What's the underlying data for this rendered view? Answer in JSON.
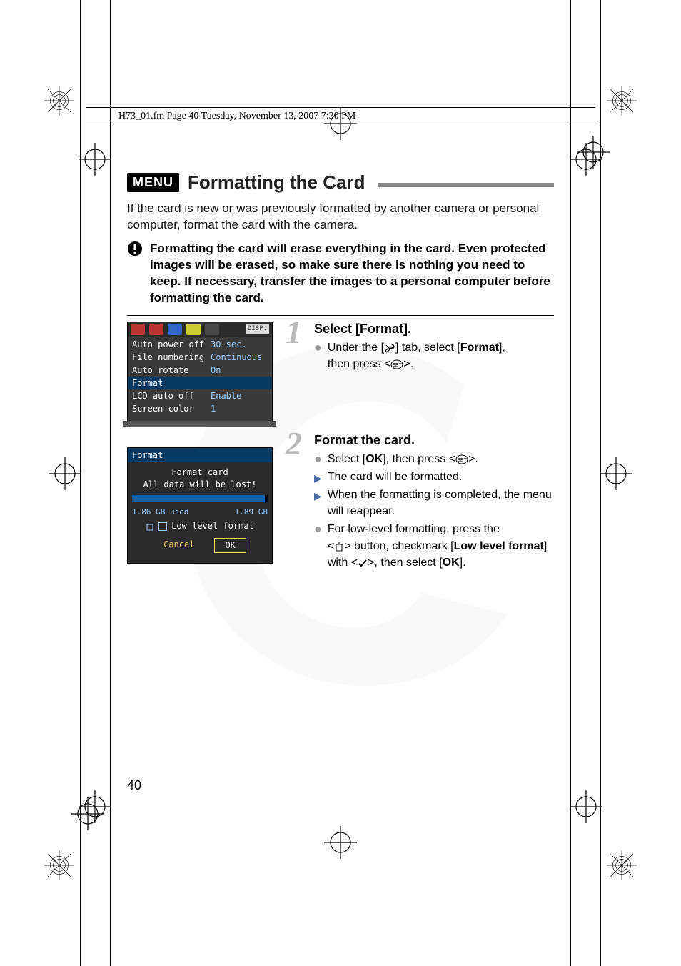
{
  "header": {
    "line": "H73_01.fm  Page 40  Tuesday, November 13, 2007  7:30 PM"
  },
  "title": {
    "badge": "MENU",
    "text": "Formatting the Card"
  },
  "intro": "If the card is new or was previously formatted by another camera or personal computer, format the card with the camera.",
  "warning": "Formatting the card will erase everything in the card. Even protected images will be erased, so make sure there is nothing you need to keep. If necessary, transfer the images to a personal computer before formatting the card.",
  "step1": {
    "num": "1",
    "head": "Select [Format].",
    "line1a": "Under the [",
    "line1b": "] tab, select [",
    "line1c": "Format",
    "line1d": "],",
    "line2a": "then press <",
    "line2b": ">."
  },
  "step2": {
    "num": "2",
    "head": "Format the card.",
    "l1a": "Select [",
    "l1b": "OK",
    "l1c": "], then press <",
    "l1d": ">.",
    "l2": "The card will be formatted.",
    "l3": "When the formatting is completed, the menu will reappear.",
    "l4a": "For low-level formatting, press the",
    "l4b": "<",
    "l4c": "> button, checkmark [",
    "l4d": "Low level format",
    "l4e": "] with <",
    "l4f": ">, then select [",
    "l4g": "OK",
    "l4h": "]."
  },
  "cam1": {
    "disp": "DISP.",
    "rows": [
      {
        "k": "Auto power off",
        "v": "30 sec."
      },
      {
        "k": "File numbering",
        "v": "Continuous"
      },
      {
        "k": "Auto rotate",
        "v": "On"
      },
      {
        "k": "Format",
        "v": ""
      },
      {
        "k": "LCD auto off",
        "v": "Enable"
      },
      {
        "k": "Screen color",
        "v": "1"
      }
    ],
    "sel_index": 3
  },
  "cam2": {
    "title": "Format",
    "h1": "Format card",
    "h2": "All data will be lost!",
    "used": "1.86 GB used",
    "total": "1.89 GB",
    "fill_pct": 98,
    "trash_icon": "trash-icon",
    "llf": "Low level format",
    "cancel": "Cancel",
    "ok": "OK"
  },
  "colors": {
    "step_num": "#b9b9b9",
    "arrow_blue": "#4a6aa8",
    "cam_bg": "#3a3a3a",
    "cam_sel": "#063a63",
    "cam_val": "#99ccff",
    "title_rule": "#888888"
  },
  "icons": {
    "wrench": "wrench-icon",
    "set": "set-icon",
    "trash": "trash-icon",
    "check": "check-icon",
    "warn": "warn-icon"
  },
  "pagenum": "40"
}
